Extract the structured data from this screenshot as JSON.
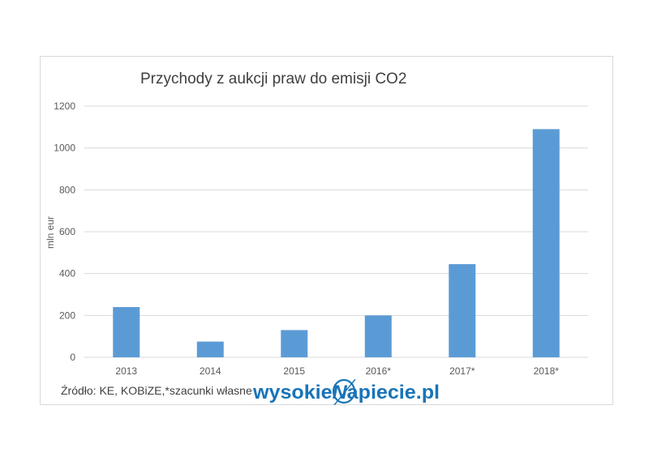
{
  "chart_data": {
    "type": "bar",
    "title": "Przychody z aukcji praw do emisji CO2",
    "ylabel": "mln eur",
    "xlabel": "",
    "categories": [
      "2013",
      "2014",
      "2015",
      "2016*",
      "2017*",
      "2018*"
    ],
    "values": [
      240,
      75,
      130,
      200,
      445,
      1090
    ],
    "ylim": [
      0,
      1200
    ],
    "yticks": [
      0,
      200,
      400,
      600,
      800,
      1000,
      1200
    ],
    "grid": true,
    "legend": "none",
    "bar_color": "#5b9bd5"
  },
  "source_note": "Źródło: KE, KOBiZE,*szacunki własne",
  "logo_text": "wysokieNapiecie.pl"
}
